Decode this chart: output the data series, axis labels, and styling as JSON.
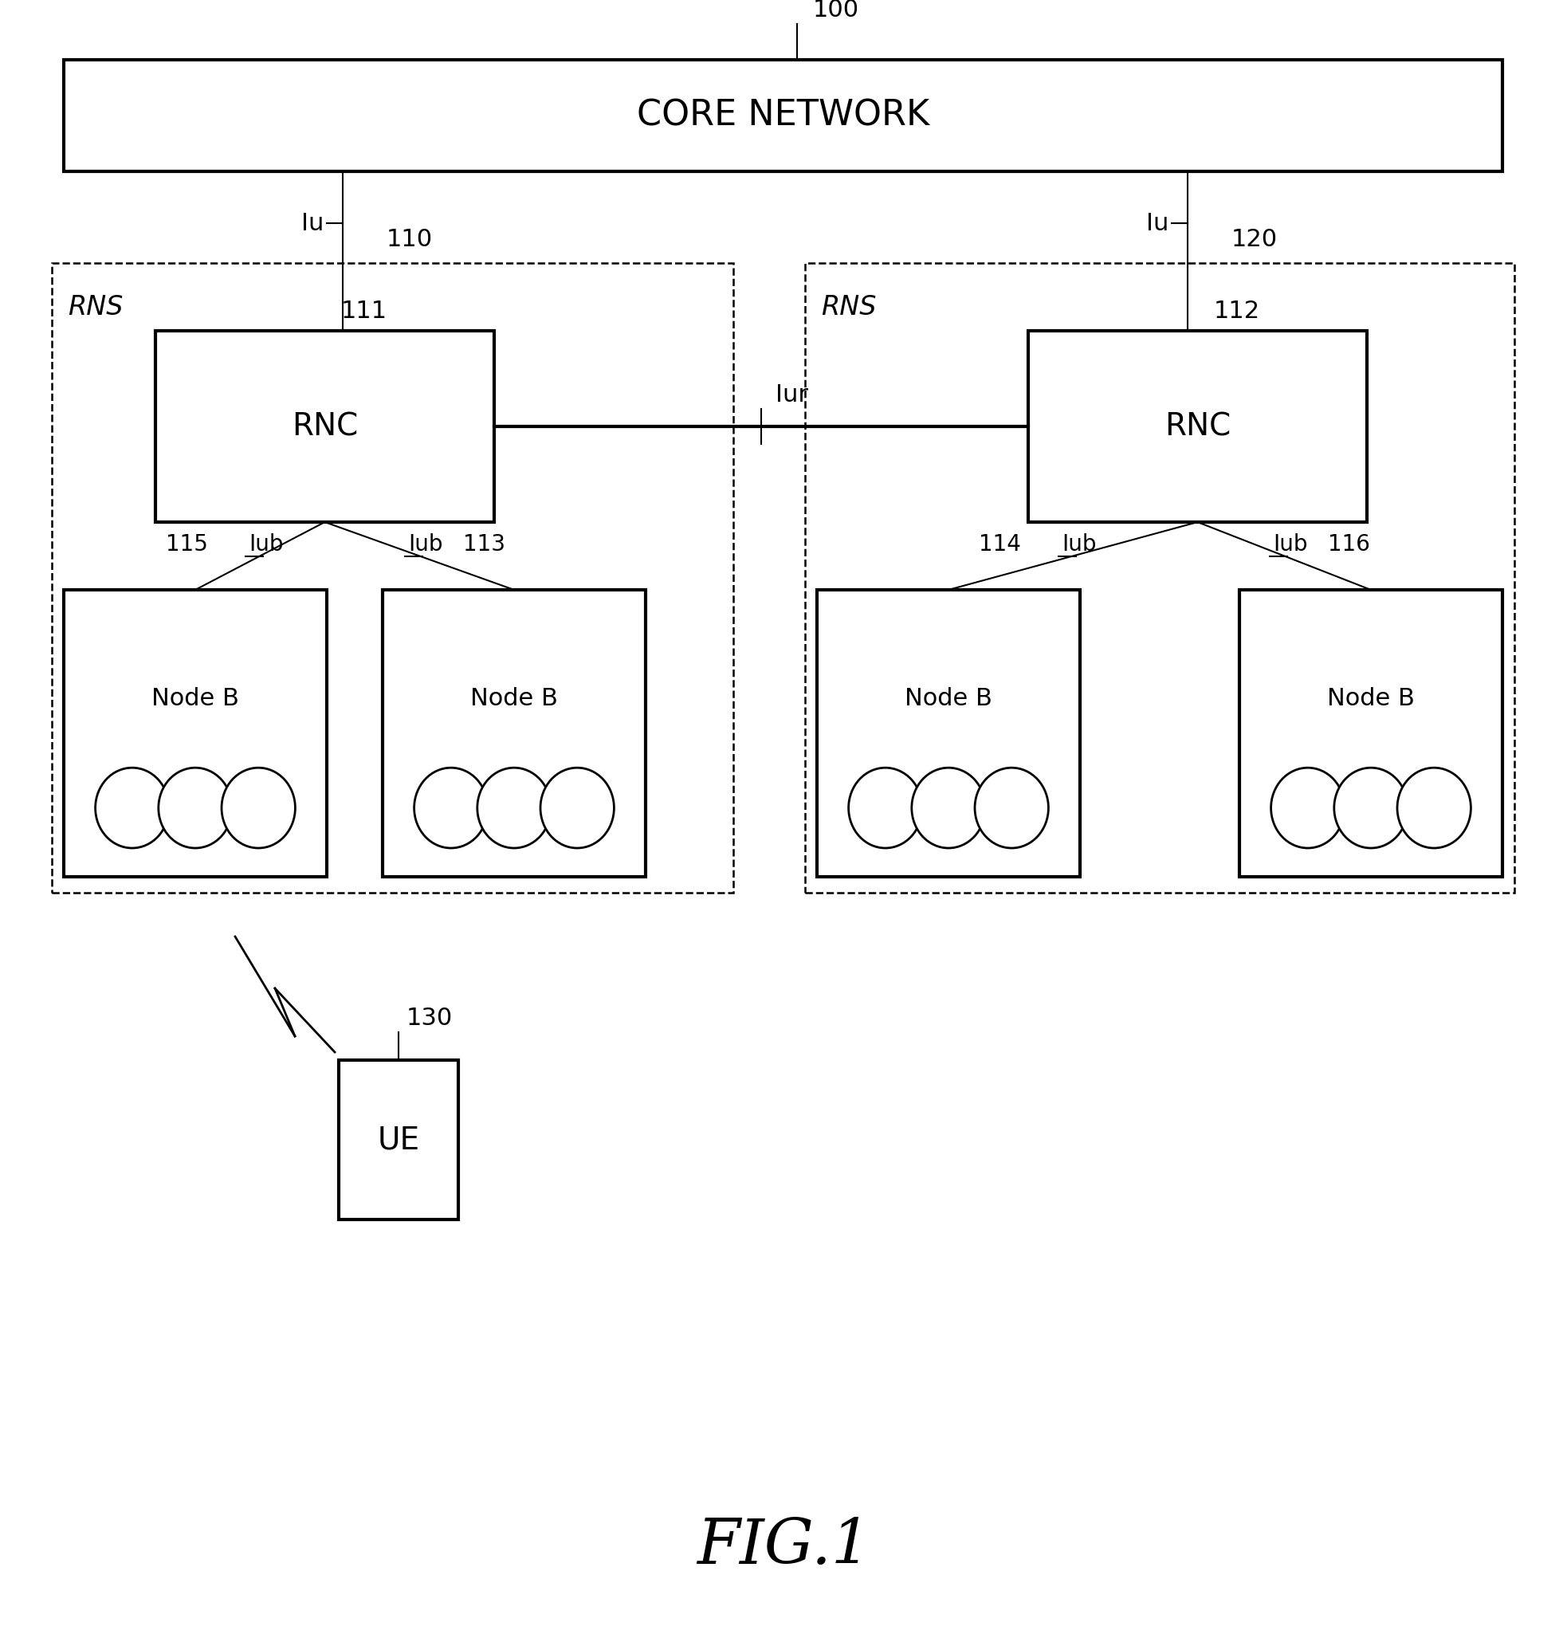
{
  "fig_width": 19.66,
  "fig_height": 20.45,
  "bg_color": "#ffffff",
  "title": "FIG.1",
  "core_network_label": "CORE NETWORK",
  "core_network_ref": "100",
  "rns_label": "RNS",
  "rnc_label": "RNC",
  "node_b_label": "Node B",
  "ue_label": "UE",
  "ue_ref": "130",
  "rnc1_ref": "111",
  "rnc2_ref": "112",
  "iur_label": "Iur",
  "iu_label": "Iu",
  "iub_label": "Iub",
  "ref_110": "110",
  "ref_113": "113",
  "ref_114": "114",
  "ref_115": "115",
  "ref_116": "116",
  "ref_120": "120",
  "lw_thick": 3.0,
  "lw_med": 2.0,
  "lw_thin": 1.5,
  "lw_dashed": 1.8
}
